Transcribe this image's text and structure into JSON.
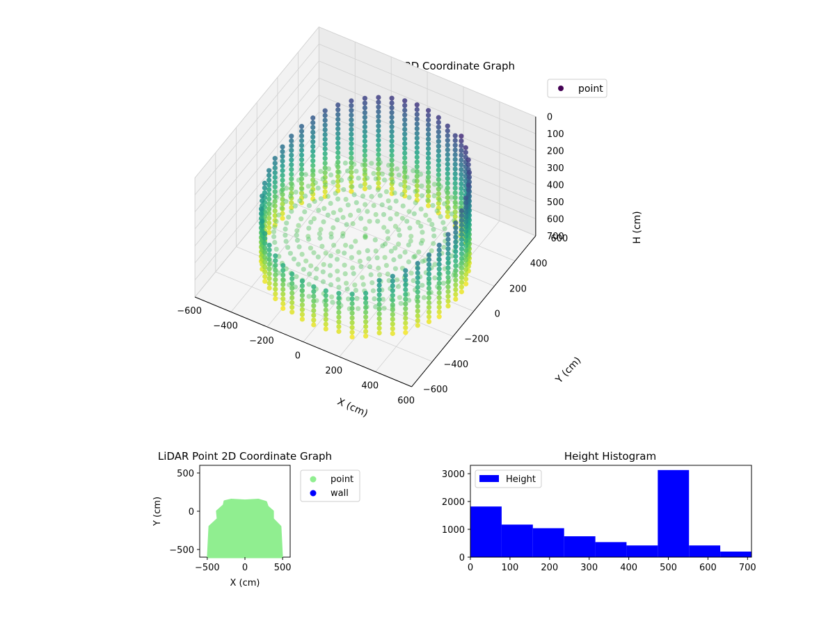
{
  "chart_data": [
    {
      "type": "scatter",
      "projection": "3d",
      "title": "LiDAR Point 3D Coordinate Graph",
      "xlabel": "X (cm)",
      "ylabel": "Y (cm)",
      "zlabel": "H (cm)",
      "xlim": [
        -600,
        600
      ],
      "ylim": [
        -600,
        600
      ],
      "zlim": [
        0,
        700
      ],
      "z_inverted": true,
      "xticks": [
        "-600",
        "-400",
        "-200",
        "0",
        "200",
        "400",
        "600"
      ],
      "yticks": [
        "-600",
        "-400",
        "-200",
        "0",
        "200",
        "400",
        "600"
      ],
      "zticks": [
        "0",
        "100",
        "200",
        "300",
        "400",
        "500",
        "600",
        "700"
      ],
      "colormap": "viridis (by height)",
      "legend": {
        "position": "upper-right",
        "entries": [
          {
            "label": "point",
            "color": "#440154"
          }
        ]
      },
      "grid": true,
      "series": [
        {
          "name": "point",
          "description_of_shape": "circular room wall columns at radius ~500, floor disk around H 500-550, open toward back",
          "wall_radius": 500,
          "floor_height": 520,
          "points_sample": [
            {
              "x": 500,
              "y": 0,
              "h": 0
            },
            {
              "x": 0,
              "y": 500,
              "h": 0
            },
            {
              "x": -500,
              "y": 0,
              "h": 100
            },
            {
              "x": 0,
              "y": -500,
              "h": 700
            },
            {
              "x": 350,
              "y": -350,
              "h": 600
            },
            {
              "x": -350,
              "y": -350,
              "h": 650
            },
            {
              "x": 0,
              "y": 0,
              "h": 520
            },
            {
              "x": 200,
              "y": 100,
              "h": 530
            }
          ]
        }
      ]
    },
    {
      "type": "scatter",
      "title": "LiDAR Point 2D Coordinate Graph",
      "xlabel": "X (cm)",
      "ylabel": "Y (cm)",
      "xlim": [
        -600,
        600
      ],
      "ylim": [
        -600,
        600
      ],
      "xticks": [
        "−500",
        "0",
        "500"
      ],
      "yticks": [
        "−500",
        "0",
        "500"
      ],
      "legend": {
        "position": "outside-right",
        "entries": [
          {
            "label": "point",
            "color": "#90ee90"
          },
          {
            "label": "wall",
            "color": "#0000ff"
          }
        ]
      },
      "series": [
        {
          "name": "point",
          "color": "#90ee90",
          "outline": [
            [
              -490,
              -600
            ],
            [
              -470,
              -200
            ],
            [
              -360,
              -100
            ],
            [
              -370,
              0
            ],
            [
              -280,
              80
            ],
            [
              -270,
              130
            ],
            [
              -180,
              150
            ],
            [
              0,
              140
            ],
            [
              180,
              150
            ],
            [
              280,
              120
            ],
            [
              300,
              60
            ],
            [
              370,
              0
            ],
            [
              370,
              -100
            ],
            [
              470,
              -200
            ],
            [
              490,
              -600
            ]
          ]
        },
        {
          "name": "wall",
          "color": "#0000ff",
          "values": []
        }
      ]
    },
    {
      "type": "bar",
      "subtype": "histogram",
      "title": "Height Histogram",
      "xlim": [
        0,
        710
      ],
      "ylim": [
        0,
        3300
      ],
      "xticks": [
        "0",
        "100",
        "200",
        "300",
        "400",
        "500",
        "600",
        "700"
      ],
      "yticks": [
        "0",
        "1000",
        "2000",
        "3000"
      ],
      "legend": {
        "position": "upper-left",
        "entries": [
          {
            "label": "Height",
            "color": "#0000ff"
          }
        ]
      },
      "series": [
        {
          "name": "Height",
          "color": "#0000ff",
          "bins": [
            0,
            78.9,
            157.8,
            236.7,
            315.6,
            394.4,
            473.3,
            552.2,
            631.1,
            710
          ],
          "values": [
            1820,
            1170,
            1040,
            750,
            540,
            420,
            3130,
            420,
            200
          ]
        }
      ]
    }
  ]
}
